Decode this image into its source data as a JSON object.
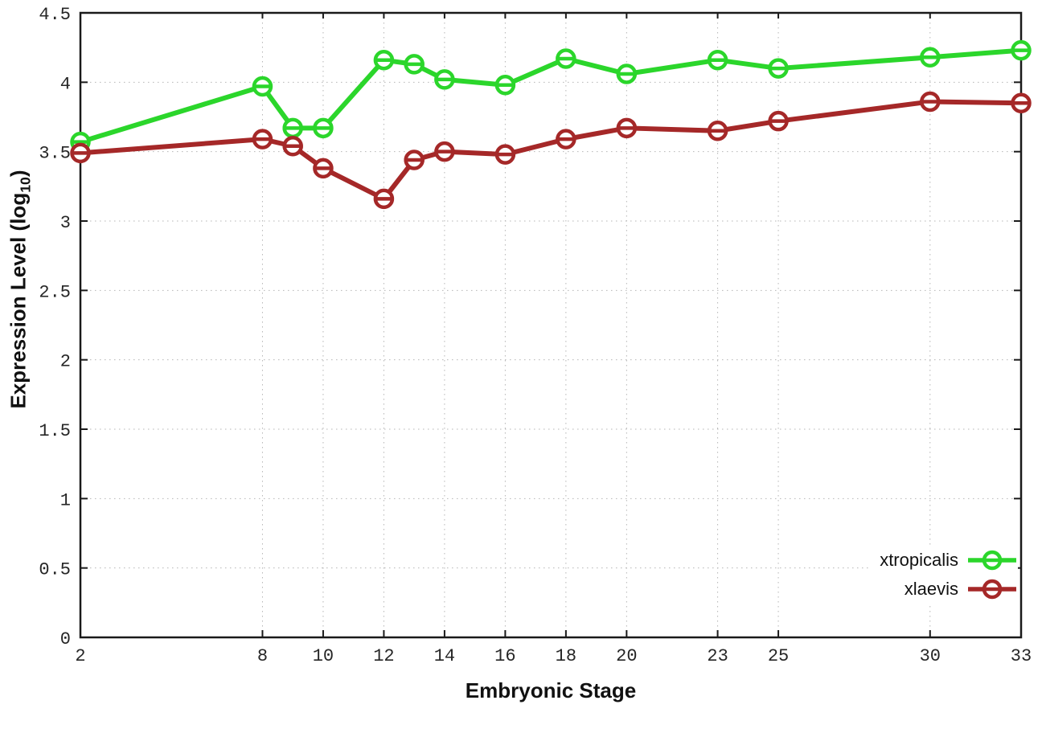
{
  "figure": {
    "background": "#ffffff",
    "frame_color": "#1a1a1a",
    "grid_color": "#b5b5b5"
  },
  "chart_data": {
    "type": "line",
    "title": "",
    "xlabel": "Embryonic Stage",
    "ylabel": "Expression Level (log10)",
    "ylabel_parts": {
      "prefix": "Expression Level (log",
      "sub": "10",
      "suffix": ")"
    },
    "x": [
      2,
      8,
      9,
      10,
      12,
      13,
      14,
      16,
      18,
      20,
      23,
      25,
      30,
      33
    ],
    "series": [
      {
        "name": "xtropicalis",
        "color": "#2bd62b",
        "values": [
          3.57,
          3.97,
          3.67,
          3.67,
          4.16,
          4.13,
          4.02,
          3.98,
          4.17,
          4.06,
          4.16,
          4.1,
          4.18,
          4.23
        ]
      },
      {
        "name": "xlaevis",
        "color": "#a52828",
        "values": [
          3.49,
          3.59,
          3.54,
          3.38,
          3.16,
          3.44,
          3.5,
          3.48,
          3.59,
          3.67,
          3.65,
          3.72,
          3.86,
          3.85
        ]
      }
    ],
    "xticks": [
      2,
      8,
      10,
      12,
      14,
      16,
      18,
      20,
      23,
      25,
      30,
      33
    ],
    "yticks": [
      0,
      0.5,
      1,
      1.5,
      2,
      2.5,
      3,
      3.5,
      4,
      4.5
    ],
    "xlim": [
      2,
      33
    ],
    "ylim": [
      0,
      4.5
    ],
    "grid": true,
    "legend_position": "inside-bottom-right",
    "marker": "open-circle-dash"
  }
}
